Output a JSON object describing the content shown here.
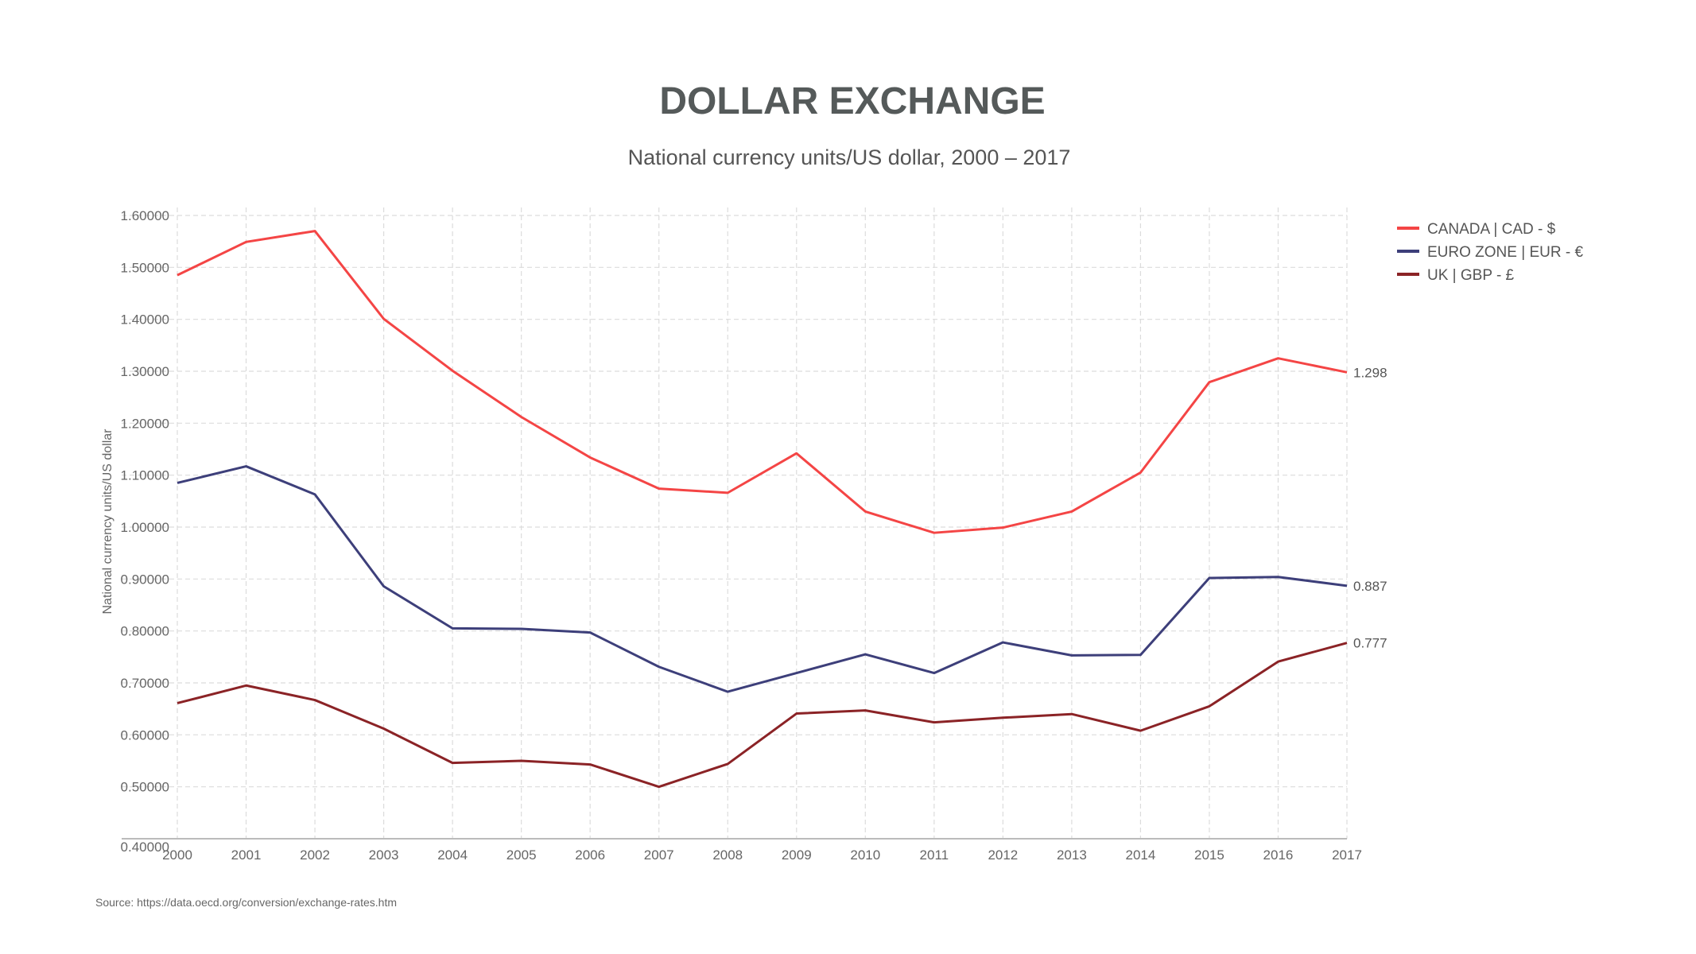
{
  "chart_data": {
    "type": "line",
    "title": "DOLLAR EXCHANGE",
    "subtitle": "National currency units/US dollar, 2000 – 2017",
    "xlabel": "",
    "ylabel": "National currency units/US dollar",
    "source": "Source: https://data.oecd.org/conversion/exchange-rates.htm",
    "x": [
      "2000",
      "2001",
      "2002",
      "2003",
      "2004",
      "2005",
      "2006",
      "2007",
      "2008",
      "2009",
      "2010",
      "2011",
      "2012",
      "2013",
      "2014",
      "2015",
      "2016",
      "2017"
    ],
    "ylim": [
      0.4,
      1.6
    ],
    "yticks": [
      "0.40000",
      "0.50000",
      "0.60000",
      "0.70000",
      "0.80000",
      "0.90000",
      "1.00000",
      "1.10000",
      "1.20000",
      "1.30000",
      "1.40000",
      "1.50000",
      "1.60000"
    ],
    "grid": true,
    "legend_position": "top-right",
    "series": [
      {
        "name": "CANADA | CAD - $",
        "color": "#f44545",
        "end_label": "1.298",
        "values": [
          1.485,
          1.549,
          1.57,
          1.401,
          1.301,
          1.212,
          1.134,
          1.074,
          1.066,
          1.142,
          1.03,
          0.989,
          0.999,
          1.03,
          1.105,
          1.279,
          1.325,
          1.298
        ]
      },
      {
        "name": "EURO ZONE | EUR - €",
        "color": "#3d3f7a",
        "end_label": "0.887",
        "values": [
          1.085,
          1.117,
          1.063,
          0.886,
          0.805,
          0.804,
          0.797,
          0.731,
          0.683,
          0.719,
          0.755,
          0.719,
          0.778,
          0.753,
          0.754,
          0.902,
          0.904,
          0.887
        ]
      },
      {
        "name": "UK | GBP - £",
        "color": "#8b2326",
        "end_label": "0.777",
        "values": [
          0.661,
          0.695,
          0.667,
          0.612,
          0.546,
          0.55,
          0.543,
          0.5,
          0.544,
          0.641,
          0.647,
          0.624,
          0.633,
          0.64,
          0.608,
          0.655,
          0.741,
          0.777
        ]
      }
    ]
  }
}
